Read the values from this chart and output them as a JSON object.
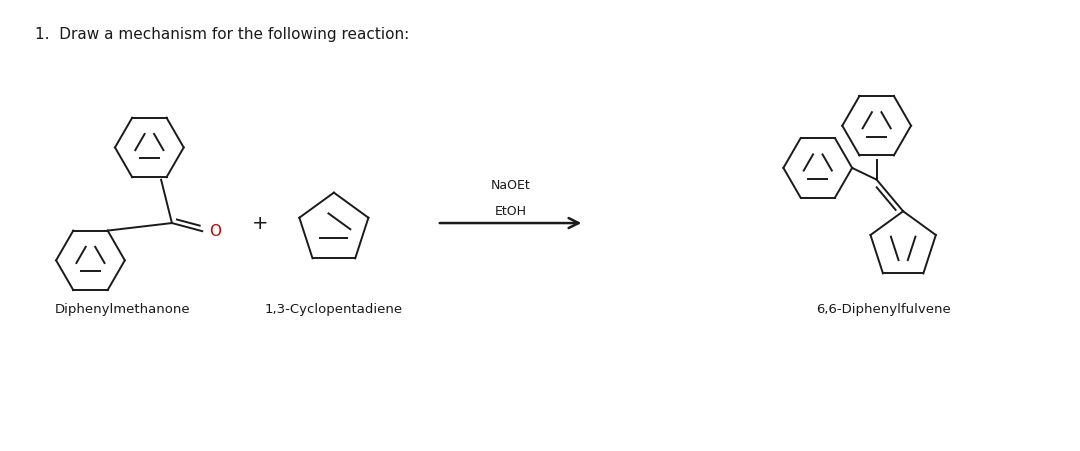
{
  "title": "1.  Draw a mechanism for the following reaction:",
  "title_fontsize": 11,
  "label1": "Diphenylmethanone",
  "label2": "1,3-Cyclopentadiene",
  "label3": "6,6-Diphenylfulvene",
  "reagents": "NaOEt\nEtOH",
  "plus_sign": "+",
  "line_color": "#1a1a1a",
  "oxygen_color": "#cc0000",
  "background_color": "#ffffff",
  "label_fontsize": 9.5,
  "reagent_fontsize": 9
}
